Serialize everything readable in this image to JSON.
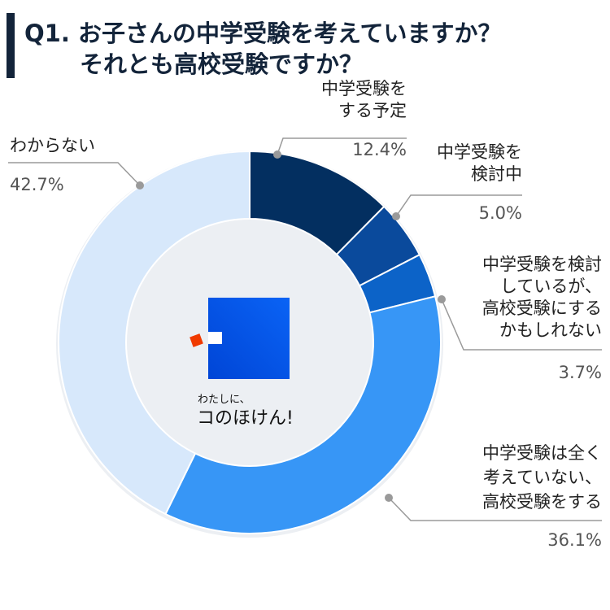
{
  "chart_data": {
    "type": "pie",
    "title": [
      "Q1. お子さんの中学受験を考えていますか？",
      "それとも高校受験ですか？"
    ],
    "series": [
      {
        "name": [
          "中学受験を",
          "する予定"
        ],
        "value": 12.4,
        "label": "12.4%",
        "color": "#032f60"
      },
      {
        "name": [
          "中学受験を",
          "検討中"
        ],
        "value": 5.0,
        "label": "5.0%",
        "color": "#0a4a9c"
      },
      {
        "name": [
          "中学受験を検討",
          "しているが、",
          "高校受験にする",
          "かもしれない"
        ],
        "value": 3.7,
        "label": "3.7%",
        "color": "#0c63c8"
      },
      {
        "name": [
          "中学受験は全く",
          "考えていない、",
          "高校受験をする"
        ],
        "value": 36.1,
        "label": "36.1%",
        "color": "#3796f6"
      },
      {
        "name": [
          "わからない"
        ],
        "value": 42.7,
        "label": "42.7%",
        "color": "#d7e8fb"
      }
    ]
  },
  "logo": {
    "line1": "わたしに、",
    "line2": "コのほけん!"
  }
}
